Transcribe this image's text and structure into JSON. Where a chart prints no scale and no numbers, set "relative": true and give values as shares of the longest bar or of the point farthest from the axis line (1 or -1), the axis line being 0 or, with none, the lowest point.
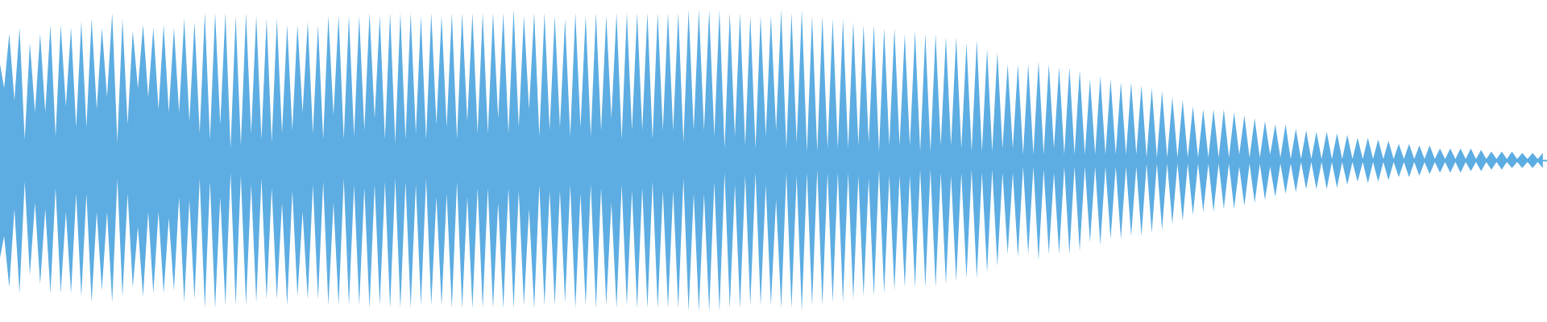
{
  "chart_data": {
    "type": "area",
    "relative": true,
    "ref_lines": [
      {
        "axis": "y",
        "value": 0,
        "color": "#5dade2"
      }
    ],
    "categories": [
      null,
      null,
      null,
      null,
      null,
      null,
      null,
      null,
      null,
      null,
      null,
      null,
      null,
      null,
      null,
      null,
      null,
      null,
      null,
      null,
      null,
      null,
      null,
      null,
      null,
      null,
      null,
      null,
      null,
      null,
      null,
      null,
      null,
      null,
      null,
      null,
      null,
      null,
      null,
      null,
      null,
      null,
      null,
      null,
      null,
      null,
      null,
      null,
      null,
      null,
      null,
      null,
      null,
      null,
      null,
      null,
      null,
      null,
      null,
      null,
      null,
      null,
      null,
      null,
      null,
      null,
      null,
      null,
      null,
      null,
      null,
      null,
      null,
      null,
      null,
      null,
      null,
      null,
      null,
      null,
      null,
      null,
      null,
      null,
      null,
      null,
      null,
      null,
      null,
      null,
      null,
      null,
      null,
      null,
      null,
      null,
      null,
      null,
      null,
      null,
      null,
      null,
      null,
      null,
      null,
      null,
      null,
      null,
      null,
      null,
      null,
      null,
      null,
      null,
      null,
      null,
      null,
      null,
      null,
      null,
      null,
      null,
      null,
      null,
      null,
      null,
      null,
      null,
      null,
      null,
      null,
      null,
      null,
      null,
      null,
      null,
      null,
      null,
      null,
      null,
      null,
      null,
      null,
      null,
      null,
      null,
      null,
      null,
      null,
      null,
      null,
      null,
      null,
      null,
      null,
      null,
      null,
      null,
      null,
      null,
      null,
      null,
      null,
      null,
      null,
      null,
      null,
      null,
      null,
      null,
      null,
      null,
      null,
      null,
      null,
      null,
      null,
      null,
      null,
      null,
      null,
      null,
      null,
      null,
      null,
      null,
      null,
      null,
      null,
      null,
      null,
      null,
      null,
      null,
      null,
      null,
      null,
      null,
      null,
      null,
      null,
      null,
      null,
      null,
      null,
      null,
      null,
      null,
      null,
      null,
      null,
      null,
      null,
      null,
      null,
      null,
      null,
      null,
      null,
      null,
      null,
      null,
      null,
      null,
      null,
      null,
      null,
      null,
      null,
      null,
      null,
      null,
      null,
      null,
      null,
      null,
      null,
      null,
      null,
      null,
      null,
      null,
      null,
      null,
      null,
      null,
      null,
      null,
      null,
      null,
      null,
      null,
      null,
      null,
      null,
      null,
      null,
      null,
      null,
      null,
      null,
      null,
      null,
      null,
      null,
      null,
      null,
      null,
      null,
      null,
      null,
      null,
      null,
      null,
      null,
      null,
      null,
      null,
      null,
      null,
      null,
      null,
      null,
      null,
      null,
      null,
      null,
      null,
      null,
      null,
      null,
      null,
      null,
      null,
      null,
      null,
      null,
      null,
      null,
      null,
      null
    ],
    "series": [
      {
        "color": "#5dade2",
        "values": [
          0.68,
          0.48,
          0.84,
          0.4,
          0.88,
          0.14,
          0.78,
          0.32,
          0.84,
          0.32,
          0.9,
          0.16,
          0.9,
          0.36,
          0.88,
          0.22,
          0.92,
          0.22,
          0.94,
          0.34,
          0.88,
          0.42,
          0.98,
          0.12,
          0.94,
          0.24,
          0.86,
          0.48,
          0.9,
          0.42,
          0.88,
          0.34,
          0.9,
          0.32,
          0.88,
          0.32,
          0.94,
          0.26,
          0.92,
          0.18,
          0.98,
          0.14,
          0.98,
          0.24,
          0.98,
          0.08,
          0.96,
          0.1,
          0.98,
          0.18,
          0.96,
          0.14,
          0.94,
          0.12,
          0.94,
          0.18,
          0.9,
          0.2,
          0.9,
          0.32,
          0.92,
          0.18,
          0.9,
          0.14,
          0.96,
          0.3,
          0.96,
          0.14,
          0.96,
          0.16,
          0.96,
          0.2,
          0.98,
          0.28,
          0.96,
          0.14,
          0.98,
          0.12,
          0.98,
          0.14,
          0.98,
          0.18,
          0.96,
          0.14,
          0.98,
          0.24,
          0.96,
          0.22,
          0.98,
          0.14,
          0.98,
          0.26,
          0.98,
          0.18,
          0.98,
          0.18,
          0.98,
          0.28,
          0.98,
          0.18,
          1.0,
          0.22,
          0.96,
          0.34,
          0.98,
          0.16,
          0.98,
          0.2,
          0.96,
          0.22,
          0.94,
          0.16,
          0.98,
          0.22,
          0.96,
          0.16,
          0.98,
          0.2,
          0.96,
          0.28,
          0.98,
          0.14,
          0.98,
          0.2,
          0.98,
          0.2,
          0.98,
          0.14,
          0.98,
          0.2,
          0.98,
          0.2,
          0.98,
          0.12,
          1.0,
          0.2,
          1.0,
          0.2,
          1.0,
          0.16,
          1.0,
          0.08,
          0.98,
          0.16,
          0.98,
          0.1,
          0.96,
          0.08,
          0.96,
          0.16,
          0.96,
          0.2,
          1.0,
          0.08,
          0.98,
          0.12,
          1.0,
          0.06,
          0.96,
          0.06,
          0.96,
          0.08,
          0.94,
          0.08,
          0.94,
          0.08,
          0.92,
          0.1,
          0.9,
          0.12,
          0.9,
          0.06,
          0.88,
          0.1,
          0.88,
          0.1,
          0.84,
          0.1,
          0.86,
          0.06,
          0.84,
          0.06,
          0.84,
          0.1,
          0.82,
          0.1,
          0.82,
          0.08,
          0.78,
          0.06,
          0.8,
          0.06,
          0.74,
          0.06,
          0.72,
          0.08,
          0.64,
          0.08,
          0.64,
          0.04,
          0.64,
          0.04,
          0.66,
          0.04,
          0.64,
          0.08,
          0.62,
          0.04,
          0.62,
          0.04,
          0.6,
          0.04,
          0.54,
          0.04,
          0.56,
          0.04,
          0.54,
          0.04,
          0.52,
          0.04,
          0.52,
          0.04,
          0.5,
          0.02,
          0.48,
          0.02,
          0.46,
          0.02,
          0.42,
          0.02,
          0.4,
          0.02,
          0.36,
          0.02,
          0.34,
          0.02,
          0.34,
          0.02,
          0.34,
          0.02,
          0.32,
          0.04,
          0.3,
          0.02,
          0.28,
          0.02,
          0.26,
          0.04,
          0.24,
          0.02,
          0.24,
          0.01,
          0.21,
          0.01,
          0.2,
          0.01,
          0.19,
          0.01,
          0.19,
          0.01,
          0.18,
          0.01,
          0.17,
          0.01,
          0.15,
          0.01,
          0.15,
          0.01,
          0.14,
          0.01,
          0.13,
          0.01,
          0.11,
          0.01,
          0.11,
          0.01,
          0.1,
          0.01,
          0.1,
          0.01,
          0.08,
          0.01,
          0.08,
          0.01,
          0.08,
          0.01,
          0.08,
          0.01,
          0.07,
          0.01,
          0.06,
          0.01,
          0.06,
          0.01,
          0.06,
          0.01,
          0.05,
          0.01,
          0.05,
          0.01,
          0.05
        ]
      },
      {
        "color": "#5dade2",
        "values": [
          -0.68,
          -0.5,
          -0.84,
          -0.32,
          -0.88,
          -0.14,
          -0.76,
          -0.28,
          -0.82,
          -0.32,
          -0.88,
          -0.18,
          -0.88,
          -0.34,
          -0.88,
          -0.22,
          -0.9,
          -0.22,
          -0.94,
          -0.34,
          -0.86,
          -0.34,
          -0.94,
          -0.12,
          -0.9,
          -0.22,
          -0.84,
          -0.44,
          -0.9,
          -0.34,
          -0.88,
          -0.34,
          -0.88,
          -0.38,
          -0.86,
          -0.24,
          -0.94,
          -0.26,
          -0.92,
          -0.12,
          -0.98,
          -0.14,
          -0.98,
          -0.24,
          -0.96,
          -0.08,
          -0.96,
          -0.1,
          -0.96,
          -0.16,
          -0.94,
          -0.12,
          -0.92,
          -0.18,
          -0.92,
          -0.28,
          -0.96,
          -0.2,
          -0.9,
          -0.34,
          -0.92,
          -0.16,
          -0.92,
          -0.14,
          -0.96,
          -0.28,
          -0.96,
          -0.12,
          -0.96,
          -0.16,
          -0.96,
          -0.18,
          -0.98,
          -0.16,
          -0.96,
          -0.14,
          -0.98,
          -0.12,
          -0.98,
          -0.14,
          -0.98,
          -0.16,
          -0.96,
          -0.12,
          -0.96,
          -0.24,
          -0.96,
          -0.22,
          -0.98,
          -0.14,
          -0.98,
          -0.24,
          -0.98,
          -0.18,
          -0.98,
          -0.18,
          -0.98,
          -0.28,
          -0.98,
          -0.18,
          -0.98,
          -0.2,
          -0.96,
          -0.32,
          -0.98,
          -0.16,
          -0.96,
          -0.2,
          -0.96,
          -0.2,
          -0.94,
          -0.16,
          -0.98,
          -0.22,
          -0.96,
          -0.16,
          -0.98,
          -0.18,
          -0.96,
          -0.28,
          -0.98,
          -0.16,
          -0.96,
          -0.2,
          -0.98,
          -0.18,
          -0.98,
          -0.14,
          -0.98,
          -0.2,
          -0.98,
          -0.2,
          -0.98,
          -0.12,
          -1.0,
          -0.22,
          -1.0,
          -0.22,
          -1.0,
          -0.14,
          -1.0,
          -0.08,
          -0.98,
          -0.16,
          -0.98,
          -0.1,
          -0.96,
          -0.08,
          -0.96,
          -0.16,
          -0.96,
          -0.26,
          -0.98,
          -0.08,
          -0.98,
          -0.1,
          -1.0,
          -0.08,
          -0.96,
          -0.06,
          -0.96,
          -0.08,
          -0.94,
          -0.08,
          -0.94,
          -0.08,
          -0.92,
          -0.1,
          -0.9,
          -0.12,
          -0.9,
          -0.06,
          -0.88,
          -0.1,
          -0.86,
          -0.1,
          -0.84,
          -0.1,
          -0.84,
          -0.06,
          -0.84,
          -0.06,
          -0.84,
          -0.08,
          -0.82,
          -0.1,
          -0.8,
          -0.08,
          -0.78,
          -0.06,
          -0.78,
          -0.08,
          -0.74,
          -0.06,
          -0.7,
          -0.08,
          -0.62,
          -0.08,
          -0.64,
          -0.04,
          -0.62,
          -0.04,
          -0.66,
          -0.06,
          -0.62,
          -0.08,
          -0.62,
          -0.04,
          -0.62,
          -0.04,
          -0.6,
          -0.04,
          -0.54,
          -0.04,
          -0.56,
          -0.04,
          -0.52,
          -0.04,
          -0.52,
          -0.04,
          -0.5,
          -0.04,
          -0.5,
          -0.02,
          -0.48,
          -0.02,
          -0.46,
          -0.02,
          -0.42,
          -0.02,
          -0.4,
          -0.02,
          -0.36,
          -0.02,
          -0.34,
          -0.02,
          -0.34,
          -0.02,
          -0.32,
          -0.02,
          -0.32,
          -0.04,
          -0.3,
          -0.02,
          -0.28,
          -0.02,
          -0.26,
          -0.04,
          -0.24,
          -0.02,
          -0.22,
          -0.02,
          -0.21,
          -0.01,
          -0.19,
          -0.01,
          -0.19,
          -0.01,
          -0.19,
          -0.01,
          -0.18,
          -0.01,
          -0.16,
          -0.01,
          -0.14,
          -0.01,
          -0.15,
          -0.01,
          -0.14,
          -0.01,
          -0.13,
          -0.01,
          -0.11,
          -0.01,
          -0.11,
          -0.01,
          -0.1,
          -0.01,
          -0.09,
          -0.01,
          -0.08,
          -0.01,
          -0.08,
          -0.01,
          -0.08,
          -0.01,
          -0.07,
          -0.01,
          -0.07,
          -0.01,
          -0.06,
          -0.01,
          -0.06,
          -0.01,
          -0.05,
          -0.01,
          -0.05,
          -0.01,
          -0.05,
          -0.01,
          -0.05
        ]
      }
    ]
  }
}
